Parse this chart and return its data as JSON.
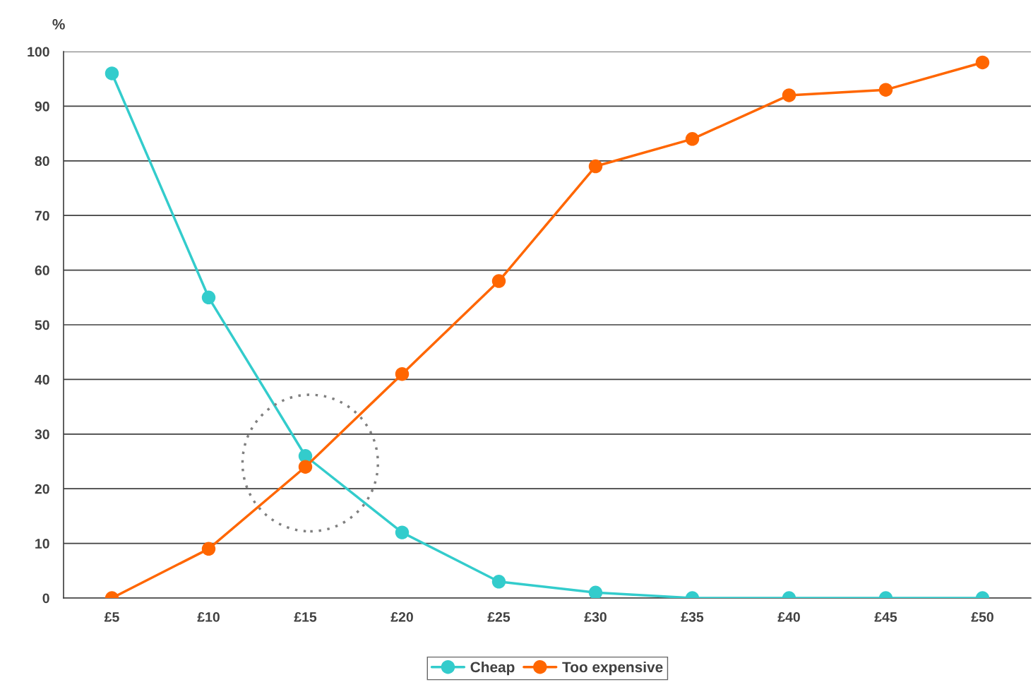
{
  "chart_data": {
    "type": "line",
    "ylabel": "%",
    "categories": [
      "£5",
      "£10",
      "£15",
      "£20",
      "£25",
      "£30",
      "£35",
      "£40",
      "£45",
      "£50"
    ],
    "series": [
      {
        "name": "Cheap",
        "color": "#33cccc",
        "values": [
          96,
          55,
          26,
          12,
          3,
          1,
          0,
          0,
          0,
          0
        ]
      },
      {
        "name": "Too expensive",
        "color": "#ff6600",
        "values": [
          0,
          9,
          24,
          41,
          58,
          79,
          84,
          92,
          93,
          98
        ]
      }
    ],
    "ylim": [
      0,
      100
    ],
    "yticks": [
      0,
      10,
      20,
      30,
      40,
      50,
      60,
      70,
      80,
      90,
      100
    ],
    "grid": "y",
    "legend": "bottom",
    "marker": "circle",
    "line_style": "solid"
  }
}
